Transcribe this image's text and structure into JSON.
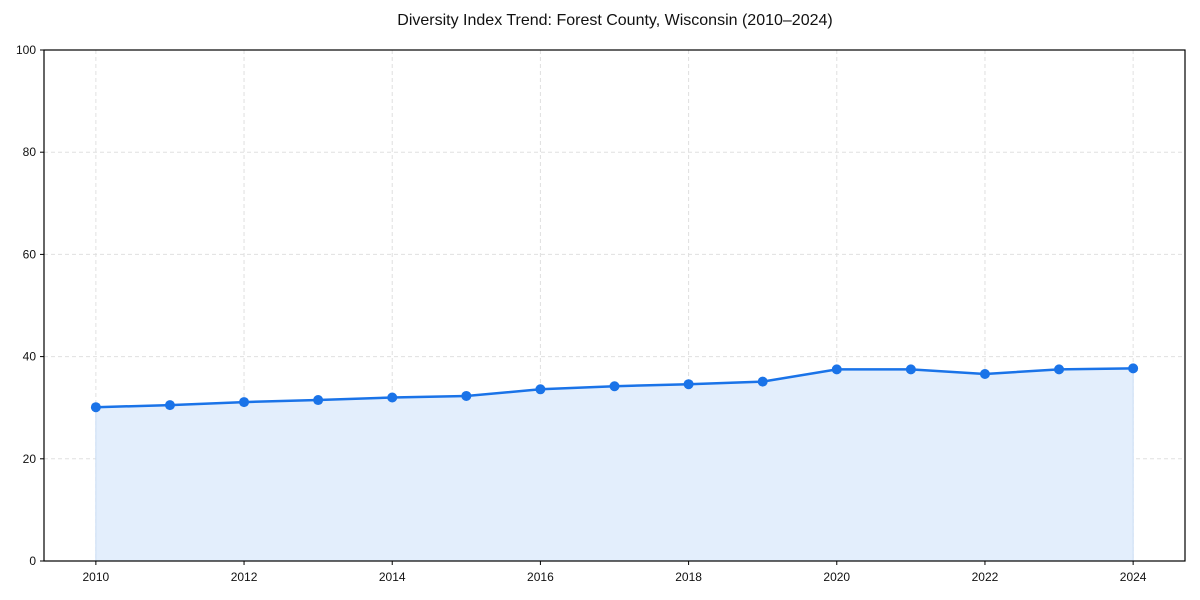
{
  "chart_data": {
    "type": "line",
    "title": "Diversity Index Trend: Forest County, Wisconsin (2010–2024)",
    "xlabel": "",
    "ylabel": "",
    "x": [
      2010,
      2011,
      2012,
      2013,
      2014,
      2015,
      2016,
      2017,
      2018,
      2019,
      2020,
      2021,
      2022,
      2023,
      2024
    ],
    "series": [
      {
        "name": "Diversity Index",
        "values": [
          30.1,
          30.5,
          31.1,
          31.5,
          32.0,
          32.3,
          33.6,
          34.2,
          34.6,
          35.1,
          37.5,
          37.5,
          36.6,
          37.5,
          37.7
        ],
        "color": "#1a73e8",
        "fill_color": "#e3eefc",
        "marker": "circle"
      }
    ],
    "xticks": [
      2010,
      2012,
      2014,
      2016,
      2018,
      2020,
      2022,
      2024
    ],
    "yticks": [
      0,
      20,
      40,
      60,
      80,
      100
    ],
    "xlim": [
      2009.3,
      2024.7
    ],
    "ylim": [
      0,
      100
    ],
    "grid": true,
    "legend": null
  }
}
